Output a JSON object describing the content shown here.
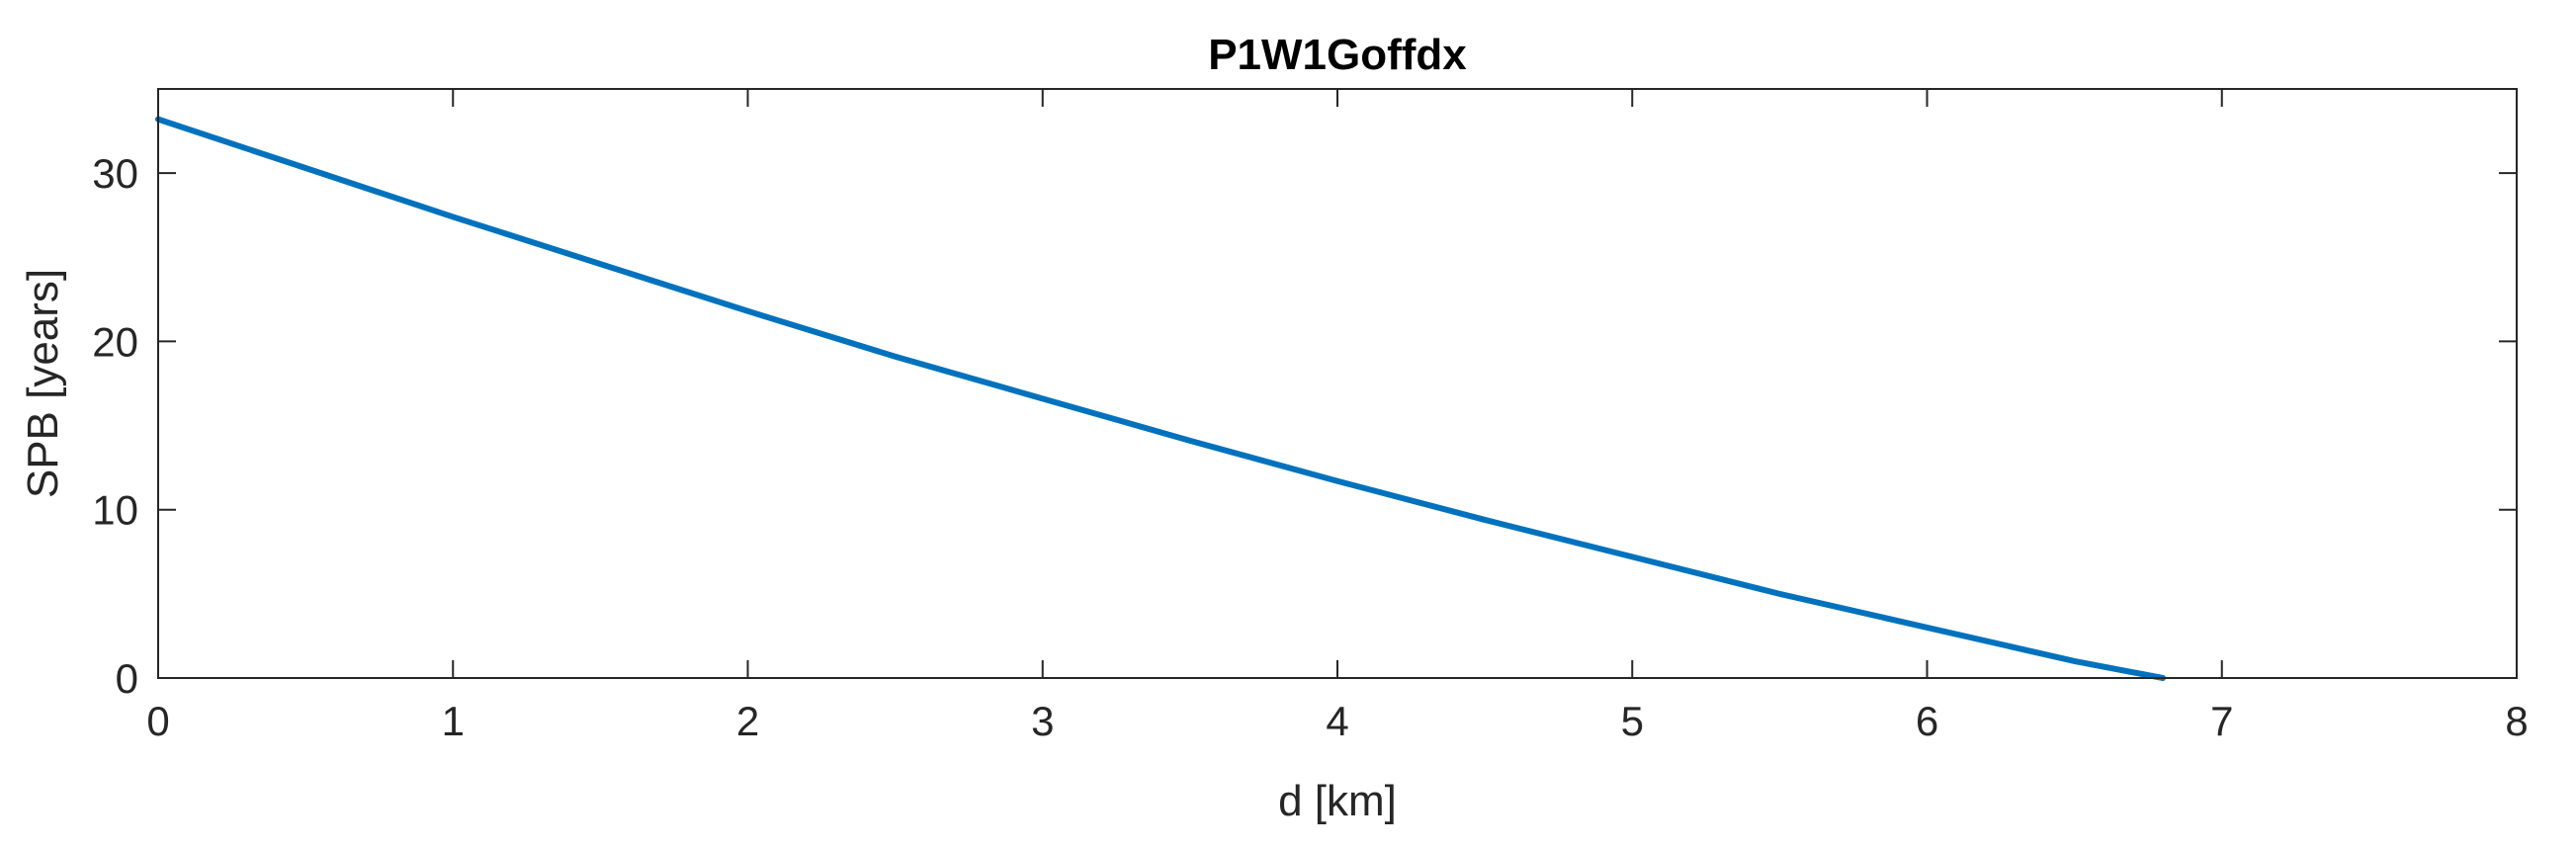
{
  "chart_data": {
    "type": "line",
    "title": "P1W1Goffdx",
    "xlabel": "d [km]",
    "ylabel": "SPB [years]",
    "xlim": [
      0,
      8
    ],
    "ylim": [
      0,
      35
    ],
    "xticks": [
      0,
      1,
      2,
      3,
      4,
      5,
      6,
      7,
      8
    ],
    "yticks": [
      0,
      10,
      20,
      30
    ],
    "grid": false,
    "series": [
      {
        "color": "#0072bd",
        "x": [
          0,
          0.5,
          1,
          1.5,
          2,
          2.5,
          3,
          3.5,
          4,
          4.5,
          5,
          5.5,
          6,
          6.5,
          6.8
        ],
        "y": [
          33.2,
          30.3,
          27.4,
          24.6,
          21.8,
          19.1,
          16.6,
          14.1,
          11.7,
          9.4,
          7.2,
          5.0,
          3.0,
          1.0,
          0
        ]
      }
    ]
  }
}
